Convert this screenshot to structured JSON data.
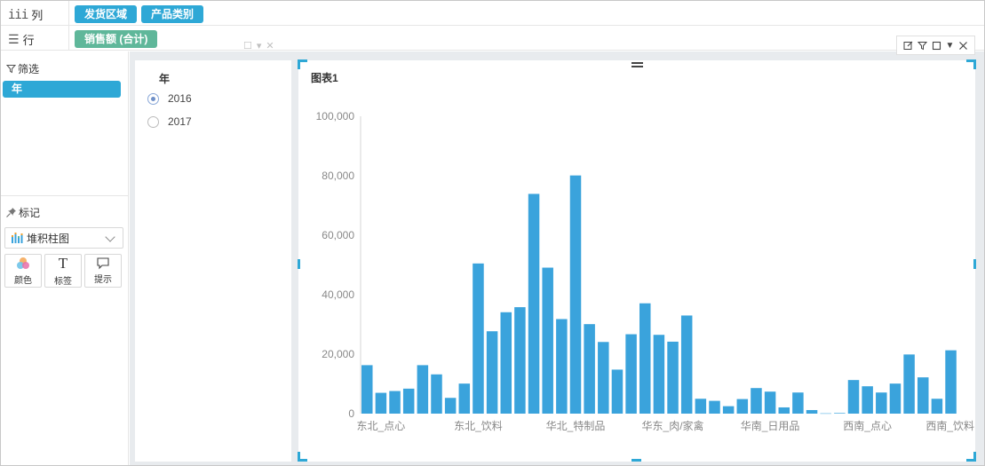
{
  "shelves": {
    "columns": {
      "label": "列",
      "pills": [
        "发货区域",
        "产品类别"
      ]
    },
    "rows": {
      "label": "行",
      "pills": [
        "销售额 (合计)"
      ]
    }
  },
  "filter": {
    "header": "筛选",
    "pill": "年"
  },
  "marks": {
    "header": "标记",
    "chart_type": "堆积柱图",
    "buttons": [
      {
        "label": "颜色",
        "icon": "color-palette-icon"
      },
      {
        "label": "标签",
        "icon": "text-label-icon"
      },
      {
        "label": "提示",
        "icon": "tooltip-icon"
      }
    ]
  },
  "year_filter": {
    "title": "年",
    "options": [
      {
        "label": "2016",
        "selected": true
      },
      {
        "label": "2017",
        "selected": false
      }
    ]
  },
  "colors": {
    "accent": "#2ea8d6",
    "measure": "#5fb79a",
    "bar": "#3aa3dc"
  },
  "chart_data": {
    "type": "bar",
    "title": "图表1",
    "ylim": [
      0,
      100000
    ],
    "yticks": [
      "0",
      "20,000",
      "40,000",
      "60,000",
      "80,000",
      "100,000"
    ],
    "xtick_labels": [
      "东北_点心",
      "东北_饮料",
      "华北_特制品",
      "华东_肉/家禽",
      "华南_日用品",
      "西南_点心",
      "西南_饮料"
    ],
    "xtick_index": [
      1,
      8,
      15,
      22,
      29,
      36,
      43
    ],
    "grid": false,
    "values": [
      16300,
      7000,
      7600,
      8400,
      16300,
      13200,
      5300,
      10100,
      50500,
      27700,
      34100,
      35800,
      73900,
      49100,
      31800,
      80100,
      30100,
      24100,
      14800,
      26700,
      37100,
      26500,
      24200,
      33000,
      5000,
      4300,
      2500,
      4900,
      8600,
      7400,
      2100,
      7100,
      1200,
      100,
      200,
      11300,
      9200,
      7100,
      10100,
      19900,
      12200,
      5000,
      21300
    ]
  }
}
